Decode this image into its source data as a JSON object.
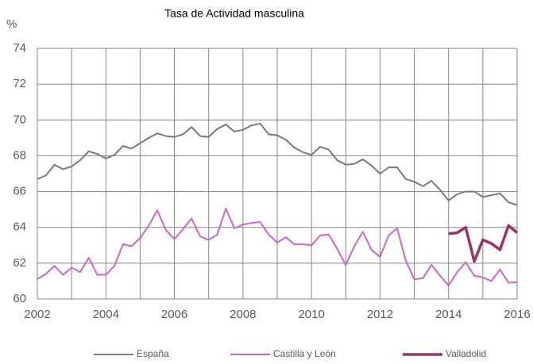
{
  "chart_data": {
    "type": "line",
    "title": "Tasa de Actividad masculina",
    "ylabel": "%",
    "x": [
      2002,
      2002.25,
      2002.5,
      2002.75,
      2003,
      2003.25,
      2003.5,
      2003.75,
      2004,
      2004.25,
      2004.5,
      2004.75,
      2005,
      2005.25,
      2005.5,
      2005.75,
      2006,
      2006.25,
      2006.5,
      2006.75,
      2007,
      2007.25,
      2007.5,
      2007.75,
      2008,
      2008.25,
      2008.5,
      2008.75,
      2009,
      2009.25,
      2009.5,
      2009.75,
      2010,
      2010.25,
      2010.5,
      2010.75,
      2011,
      2011.25,
      2011.5,
      2011.75,
      2012,
      2012.25,
      2012.5,
      2012.75,
      2013,
      2013.25,
      2013.5,
      2013.75,
      2014,
      2014.25,
      2014.5,
      2014.75,
      2015,
      2015.25,
      2015.5,
      2015.75,
      2016
    ],
    "series": [
      {
        "name": "España",
        "color": "#7a7a7a",
        "width": 2,
        "values": [
          66.7,
          66.9,
          67.5,
          67.25,
          67.4,
          67.75,
          68.25,
          68.1,
          67.85,
          68.05,
          68.55,
          68.4,
          68.7,
          69.0,
          69.25,
          69.1,
          69.05,
          69.2,
          69.6,
          69.1,
          69.05,
          69.5,
          69.75,
          69.35,
          69.45,
          69.7,
          69.8,
          69.2,
          69.15,
          68.9,
          68.45,
          68.2,
          68.05,
          68.5,
          68.35,
          67.75,
          67.5,
          67.55,
          67.8,
          67.45,
          67.0,
          67.35,
          67.35,
          66.7,
          66.55,
          66.3,
          66.6,
          66.1,
          65.5,
          65.85,
          66.0,
          66.0,
          65.7,
          65.8,
          65.9,
          65.4,
          65.25
        ]
      },
      {
        "name": "Castilla y León",
        "color": "#cc66cc",
        "width": 2,
        "values": [
          61.1,
          61.4,
          61.85,
          61.35,
          61.75,
          61.5,
          62.3,
          61.35,
          61.35,
          61.85,
          63.05,
          62.95,
          63.4,
          64.1,
          64.95,
          63.85,
          63.35,
          63.9,
          64.5,
          63.5,
          63.3,
          63.6,
          65.05,
          63.95,
          64.15,
          64.25,
          64.3,
          63.6,
          63.15,
          63.45,
          63.05,
          63.05,
          63.0,
          63.55,
          63.6,
          62.8,
          61.9,
          62.95,
          63.75,
          62.75,
          62.35,
          63.55,
          63.95,
          62.15,
          61.1,
          61.15,
          61.9,
          61.3,
          60.75,
          61.5,
          62.05,
          61.3,
          61.2,
          61.0,
          61.65,
          60.9,
          60.95
        ]
      },
      {
        "name": "Valladolid",
        "color": "#993366",
        "width": 3.5,
        "values": [
          null,
          null,
          null,
          null,
          null,
          null,
          null,
          null,
          null,
          null,
          null,
          null,
          null,
          null,
          null,
          null,
          null,
          null,
          null,
          null,
          null,
          null,
          null,
          null,
          null,
          null,
          null,
          null,
          null,
          null,
          null,
          null,
          null,
          null,
          null,
          null,
          null,
          null,
          null,
          null,
          null,
          null,
          null,
          null,
          null,
          null,
          null,
          null,
          63.65,
          63.7,
          64.0,
          62.1,
          63.3,
          63.1,
          62.75,
          64.1,
          63.7
        ]
      }
    ],
    "xlim": [
      2002,
      2016
    ],
    "xticks": [
      2002,
      2004,
      2006,
      2008,
      2010,
      2012,
      2014,
      2016
    ],
    "x_minor_grid": [
      2003,
      2005,
      2007,
      2009,
      2011,
      2013,
      2015
    ],
    "ylim": [
      60,
      74
    ],
    "yticks": [
      60,
      62,
      64,
      66,
      68,
      70,
      72,
      74
    ],
    "grid": true,
    "legend": "bottom"
  }
}
